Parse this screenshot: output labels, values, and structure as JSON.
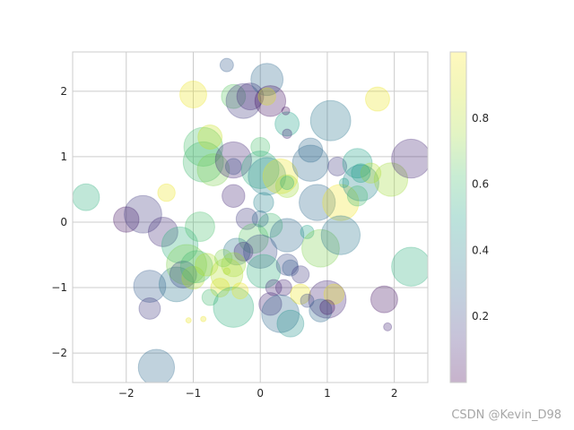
{
  "chart_data": {
    "type": "scatter",
    "title": "",
    "xlabel": "",
    "ylabel": "",
    "xlim": [
      -2.8,
      2.5
    ],
    "ylim": [
      -2.45,
      2.6
    ],
    "xticks": [
      -2,
      -1,
      0,
      1,
      2
    ],
    "xtick_labels": [
      "−2",
      "−1",
      "0",
      "1",
      "2"
    ],
    "yticks": [
      -2,
      -1,
      0,
      1,
      2
    ],
    "ytick_labels": [
      "−2",
      "−1",
      "0",
      "1",
      "2"
    ],
    "grid": true,
    "alpha": 0.3,
    "colormap": "viridis",
    "colorbar": {
      "range": [
        0,
        1
      ],
      "ticks": [
        0.2,
        0.4,
        0.6,
        0.8
      ],
      "tick_labels": [
        "0.2",
        "0.4",
        "0.6",
        "0.8"
      ]
    },
    "points": [
      {
        "x": -2.6,
        "y": 0.38,
        "r": 0.2,
        "c": 0.55
      },
      {
        "x": -2.0,
        "y": 0.04,
        "r": 0.19,
        "c": 0.05
      },
      {
        "x": -1.75,
        "y": 0.12,
        "r": 0.28,
        "c": 0.15
      },
      {
        "x": -1.55,
        "y": -2.22,
        "r": 0.27,
        "c": 0.3
      },
      {
        "x": -1.65,
        "y": -0.98,
        "r": 0.24,
        "c": 0.25
      },
      {
        "x": -1.65,
        "y": -1.32,
        "r": 0.16,
        "c": 0.15
      },
      {
        "x": -1.45,
        "y": -0.15,
        "r": 0.22,
        "c": 0.12
      },
      {
        "x": -1.4,
        "y": 0.45,
        "r": 0.13,
        "c": 0.95
      },
      {
        "x": -1.2,
        "y": -0.35,
        "r": 0.27,
        "c": 0.55
      },
      {
        "x": -1.25,
        "y": -0.95,
        "r": 0.26,
        "c": 0.35
      },
      {
        "x": -1.1,
        "y": -0.65,
        "r": 0.3,
        "c": 0.7
      },
      {
        "x": -1.15,
        "y": -0.8,
        "r": 0.2,
        "c": 0.2
      },
      {
        "x": -1.0,
        "y": -0.85,
        "r": 0.17,
        "c": 0.8
      },
      {
        "x": -0.9,
        "y": -0.07,
        "r": 0.22,
        "c": 0.62
      },
      {
        "x": -0.95,
        "y": -0.68,
        "r": 0.24,
        "c": 0.6
      },
      {
        "x": -0.85,
        "y": 1.15,
        "r": 0.29,
        "c": 0.62
      },
      {
        "x": -0.85,
        "y": 0.92,
        "r": 0.3,
        "c": 0.6
      },
      {
        "x": -0.75,
        "y": 1.3,
        "r": 0.18,
        "c": 0.85
      },
      {
        "x": -0.7,
        "y": 0.8,
        "r": 0.24,
        "c": 0.7
      },
      {
        "x": -1.0,
        "y": 1.95,
        "r": 0.2,
        "c": 0.95
      },
      {
        "x": -0.4,
        "y": 1.92,
        "r": 0.18,
        "c": 0.65
      },
      {
        "x": -0.15,
        "y": 1.92,
        "r": 0.2,
        "c": 0.1
      },
      {
        "x": -0.25,
        "y": 1.85,
        "r": 0.26,
        "c": 0.15
      },
      {
        "x": 0.1,
        "y": 2.18,
        "r": 0.24,
        "c": 0.3
      },
      {
        "x": 0.15,
        "y": 1.85,
        "r": 0.23,
        "c": 0.05
      },
      {
        "x": 0.1,
        "y": 1.92,
        "r": 0.13,
        "c": 0.9
      },
      {
        "x": -0.5,
        "y": 2.4,
        "r": 0.1,
        "c": 0.25
      },
      {
        "x": -0.4,
        "y": 0.95,
        "r": 0.27,
        "c": 0.1
      },
      {
        "x": -0.4,
        "y": 0.85,
        "r": 0.12,
        "c": 0.2
      },
      {
        "x": -0.4,
        "y": 0.4,
        "r": 0.17,
        "c": 0.1
      },
      {
        "x": -0.2,
        "y": 0.05,
        "r": 0.16,
        "c": 0.15
      },
      {
        "x": -0.1,
        "y": -0.25,
        "r": 0.22,
        "c": 0.65
      },
      {
        "x": -0.35,
        "y": -0.45,
        "r": 0.2,
        "c": 0.35
      },
      {
        "x": -0.25,
        "y": -0.45,
        "r": 0.14,
        "c": 0.1
      },
      {
        "x": -0.4,
        "y": -0.65,
        "r": 0.18,
        "c": 0.75
      },
      {
        "x": -0.5,
        "y": -0.8,
        "r": 0.24,
        "c": 0.8
      },
      {
        "x": -0.6,
        "y": -1.0,
        "r": 0.14,
        "c": 0.9
      },
      {
        "x": -0.75,
        "y": -1.15,
        "r": 0.12,
        "c": 0.6
      },
      {
        "x": -0.8,
        "y": -0.65,
        "r": 0.17,
        "c": 0.8
      },
      {
        "x": -0.4,
        "y": -1.3,
        "r": 0.3,
        "c": 0.55
      },
      {
        "x": -0.3,
        "y": -1.05,
        "r": 0.12,
        "c": 0.95
      },
      {
        "x": -0.55,
        "y": -0.55,
        "r": 0.13,
        "c": 0.7
      },
      {
        "x": 0.0,
        "y": 1.15,
        "r": 0.14,
        "c": 0.62
      },
      {
        "x": 0.0,
        "y": 0.8,
        "r": 0.28,
        "c": 0.55
      },
      {
        "x": 0.1,
        "y": 0.7,
        "r": 0.28,
        "c": 0.4
      },
      {
        "x": 0.3,
        "y": 0.7,
        "r": 0.26,
        "c": 0.95
      },
      {
        "x": 0.4,
        "y": 0.55,
        "r": 0.17,
        "c": 0.75
      },
      {
        "x": 0.4,
        "y": 0.6,
        "r": 0.1,
        "c": 0.55
      },
      {
        "x": 0.05,
        "y": 0.3,
        "r": 0.15,
        "c": 0.4
      },
      {
        "x": 0.15,
        "y": -0.05,
        "r": 0.18,
        "c": 0.6
      },
      {
        "x": 0.0,
        "y": 0.05,
        "r": 0.12,
        "c": 0.3
      },
      {
        "x": 0.0,
        "y": -0.45,
        "r": 0.25,
        "c": 0.2
      },
      {
        "x": 0.05,
        "y": -0.75,
        "r": 0.25,
        "c": 0.55
      },
      {
        "x": 0.4,
        "y": -0.2,
        "r": 0.25,
        "c": 0.3
      },
      {
        "x": 0.4,
        "y": -0.65,
        "r": 0.16,
        "c": 0.2
      },
      {
        "x": 0.45,
        "y": -0.7,
        "r": 0.12,
        "c": 0.25
      },
      {
        "x": 0.2,
        "y": -1.0,
        "r": 0.12,
        "c": 0.1
      },
      {
        "x": 0.35,
        "y": -1.0,
        "r": 0.12,
        "c": 0.1
      },
      {
        "x": 0.15,
        "y": -1.25,
        "r": 0.17,
        "c": 0.1
      },
      {
        "x": 0.3,
        "y": -1.4,
        "r": 0.28,
        "c": 0.3
      },
      {
        "x": 0.45,
        "y": -1.55,
        "r": 0.2,
        "c": 0.45
      },
      {
        "x": 0.6,
        "y": -1.1,
        "r": 0.15,
        "c": 0.95
      },
      {
        "x": 0.4,
        "y": 1.5,
        "r": 0.18,
        "c": 0.5
      },
      {
        "x": 0.4,
        "y": 1.35,
        "r": 0.07,
        "c": 0.1
      },
      {
        "x": 0.38,
        "y": 1.7,
        "r": 0.06,
        "c": 0.05
      },
      {
        "x": 0.75,
        "y": 1.1,
        "r": 0.18,
        "c": 0.3
      },
      {
        "x": 0.75,
        "y": 0.9,
        "r": 0.27,
        "c": 0.3
      },
      {
        "x": 0.85,
        "y": 0.3,
        "r": 0.27,
        "c": 0.3
      },
      {
        "x": 0.7,
        "y": -0.15,
        "r": 0.1,
        "c": 0.5
      },
      {
        "x": 0.9,
        "y": -0.4,
        "r": 0.28,
        "c": 0.7
      },
      {
        "x": 1.2,
        "y": 0.3,
        "r": 0.27,
        "c": 0.97
      },
      {
        "x": 1.2,
        "y": -0.2,
        "r": 0.29,
        "c": 0.35
      },
      {
        "x": 1.05,
        "y": 1.55,
        "r": 0.3,
        "c": 0.35
      },
      {
        "x": 1.15,
        "y": 0.85,
        "r": 0.14,
        "c": 0.15
      },
      {
        "x": 1.45,
        "y": 0.9,
        "r": 0.22,
        "c": 0.5
      },
      {
        "x": 1.5,
        "y": 0.6,
        "r": 0.27,
        "c": 0.4
      },
      {
        "x": 1.65,
        "y": 0.75,
        "r": 0.15,
        "c": 0.8
      },
      {
        "x": 1.5,
        "y": 0.75,
        "r": 0.14,
        "c": 0.5
      },
      {
        "x": 1.45,
        "y": 0.4,
        "r": 0.15,
        "c": 0.6
      },
      {
        "x": 1.25,
        "y": 0.6,
        "r": 0.07,
        "c": 0.5
      },
      {
        "x": 1.75,
        "y": 1.88,
        "r": 0.18,
        "c": 0.95
      },
      {
        "x": 1.95,
        "y": 0.65,
        "r": 0.25,
        "c": 0.75
      },
      {
        "x": 2.25,
        "y": 0.97,
        "r": 0.29,
        "c": 0.1
      },
      {
        "x": 2.25,
        "y": -0.68,
        "r": 0.29,
        "c": 0.55
      },
      {
        "x": 1.85,
        "y": -1.18,
        "r": 0.2,
        "c": 0.05
      },
      {
        "x": 1.9,
        "y": -1.6,
        "r": 0.06,
        "c": 0.1
      },
      {
        "x": 1.0,
        "y": -1.18,
        "r": 0.28,
        "c": 0.1
      },
      {
        "x": 1.1,
        "y": -1.1,
        "r": 0.15,
        "c": 0.95
      },
      {
        "x": 0.9,
        "y": -1.35,
        "r": 0.17,
        "c": 0.3
      },
      {
        "x": 1.0,
        "y": -1.3,
        "r": 0.11,
        "c": 0.05
      },
      {
        "x": 0.6,
        "y": -0.8,
        "r": 0.13,
        "c": 0.15
      },
      {
        "x": 0.7,
        "y": -1.2,
        "r": 0.1,
        "c": 0.2
      },
      {
        "x": -0.85,
        "y": -1.48,
        "r": 0.04,
        "c": 0.95
      },
      {
        "x": -1.07,
        "y": -1.5,
        "r": 0.04,
        "c": 0.95
      },
      {
        "x": -0.5,
        "y": -0.75,
        "r": 0.05,
        "c": 0.8
      }
    ]
  },
  "watermark": "CSDN @Kevin_D98"
}
